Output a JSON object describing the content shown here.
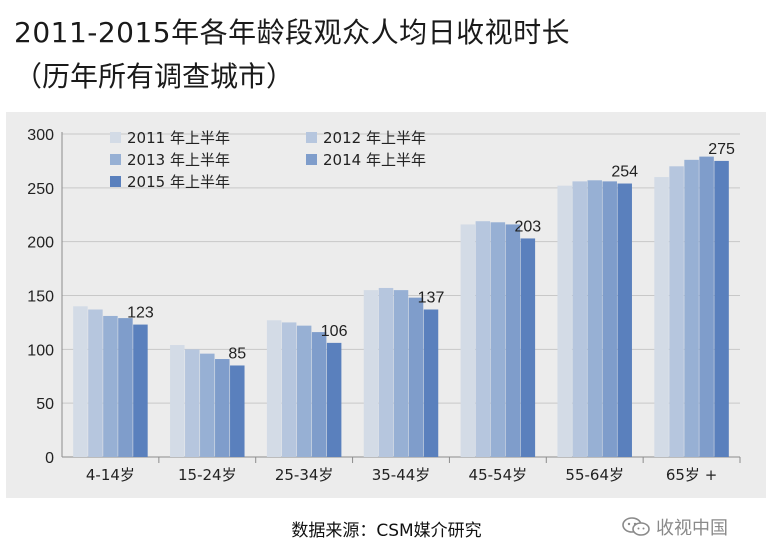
{
  "title": "2011-2015年各年龄段观众人均日收视时长",
  "subtitle": "（历年所有调查城市）",
  "source": "数据来源：CSM媒介研究",
  "watermark": {
    "text": "收视中国",
    "icon": "wechat-icon"
  },
  "colors": {
    "panel_bg": "#ececec",
    "series": [
      "#d3dbe6",
      "#b6c6de",
      "#97b0d4",
      "#7f9dcb",
      "#5a80bd"
    ]
  },
  "chart_data": {
    "type": "bar",
    "title": "",
    "xlabel": "",
    "ylabel": "",
    "ylim": [
      0,
      300
    ],
    "yticks": [
      0,
      50,
      100,
      150,
      200,
      250,
      300
    ],
    "grid": true,
    "legend_position": "top-left",
    "categories": [
      "4-14岁",
      "15-24岁",
      "25-34岁",
      "35-44岁",
      "45-54岁",
      "55-64岁",
      "65岁 +"
    ],
    "series": [
      {
        "name": "2011 年上半年",
        "values": [
          140,
          104,
          127,
          155,
          216,
          252,
          260
        ]
      },
      {
        "name": "2012 年上半年",
        "values": [
          137,
          100,
          125,
          157,
          219,
          256,
          270
        ]
      },
      {
        "name": "2013 年上半年",
        "values": [
          131,
          96,
          122,
          155,
          218,
          257,
          276
        ]
      },
      {
        "name": "2014 年上半年",
        "values": [
          129,
          91,
          116,
          148,
          216,
          256,
          279
        ]
      },
      {
        "name": "2015 年上半年",
        "values": [
          123,
          85,
          106,
          137,
          203,
          254,
          275
        ]
      }
    ],
    "data_labels": {
      "series_index": 4,
      "values": [
        123,
        85,
        106,
        137,
        203,
        254,
        275
      ]
    }
  }
}
